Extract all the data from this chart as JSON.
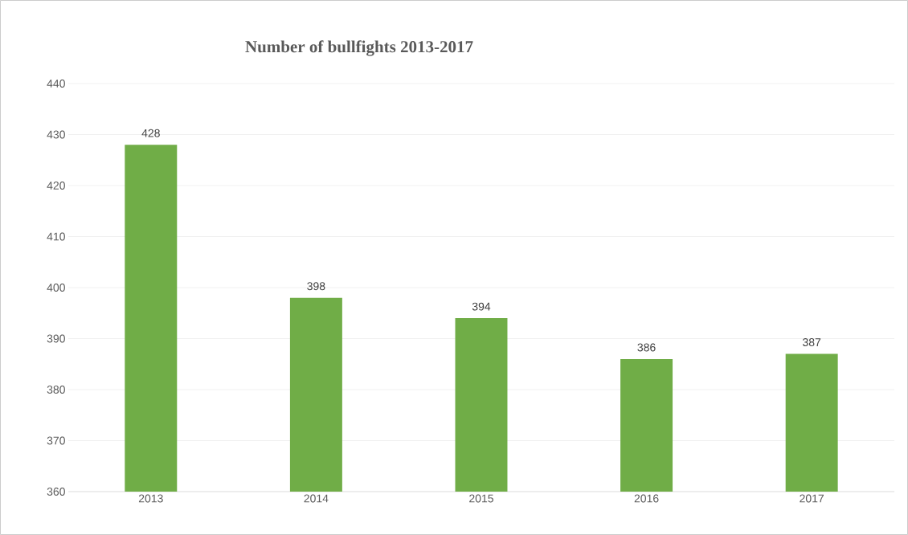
{
  "chart_data": {
    "type": "bar",
    "title": "Number of bullfights 2013-2017",
    "categories": [
      "2013",
      "2014",
      "2015",
      "2016",
      "2017"
    ],
    "values": [
      428,
      398,
      394,
      386,
      387
    ],
    "color": "#70ad47",
    "ylim": [
      360,
      440
    ],
    "yticks": [
      360,
      370,
      380,
      390,
      400,
      410,
      420,
      430,
      440
    ],
    "grid": "y",
    "data_labels": true
  }
}
